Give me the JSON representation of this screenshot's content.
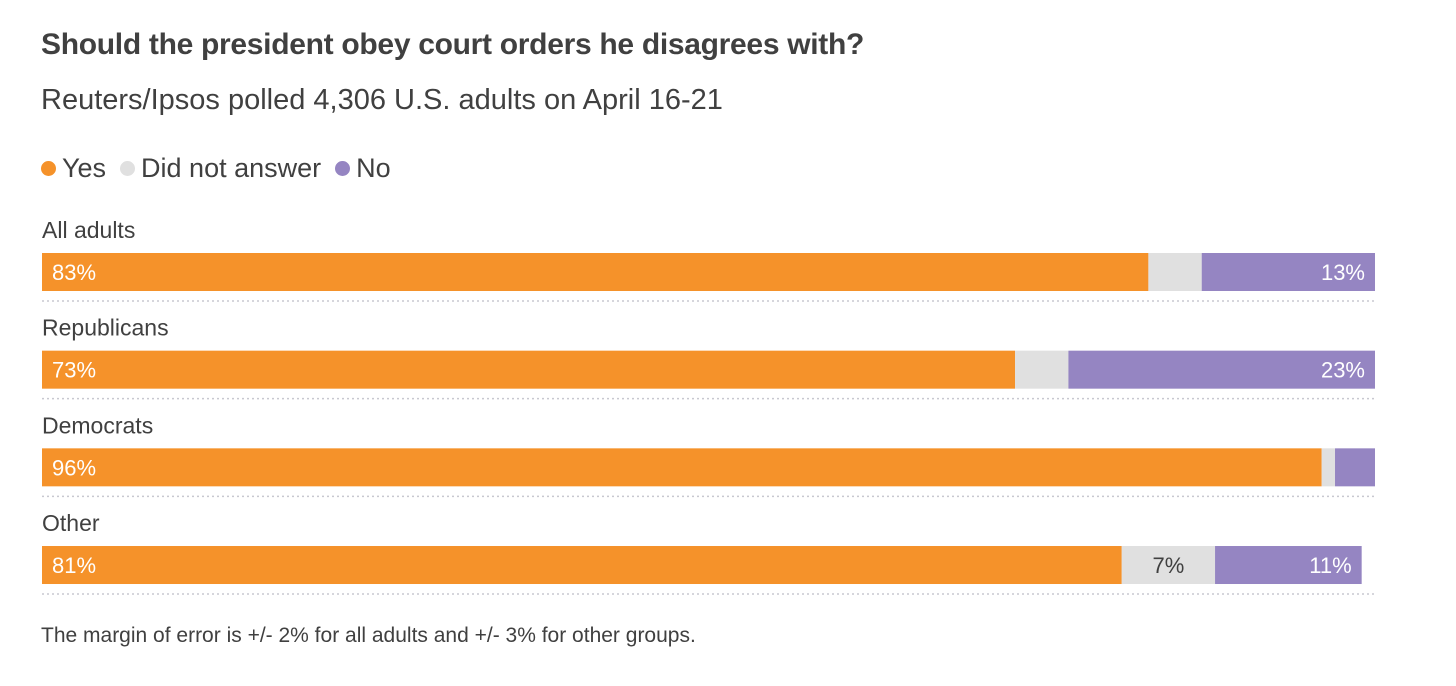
{
  "title": "Should the president obey court orders he disagrees with?",
  "subtitle": "Reuters/Ipsos polled 4,306 U.S. adults on April 16-21",
  "footnote": "The margin of error is +/- 2% for all adults and +/- 3% for other groups.",
  "colors": {
    "yes": "#f5922a",
    "did_not_answer": "#e0e0e0",
    "no": "#9585c2",
    "separator": "#c8c8d0"
  },
  "legend": [
    {
      "label": "Yes",
      "color": "#f5922a"
    },
    {
      "label": "Did not answer",
      "color": "#e0e0e0"
    },
    {
      "label": "No",
      "color": "#9585c2"
    }
  ],
  "chart_data": {
    "type": "bar",
    "orientation": "horizontal",
    "stacked": true,
    "unit": "%",
    "categories": [
      "All adults",
      "Republicans",
      "Democrats",
      "Other"
    ],
    "series": [
      {
        "name": "Yes",
        "values": [
          83,
          73,
          96,
          81
        ],
        "labels": [
          "83%",
          "73%",
          "96%",
          "81%"
        ]
      },
      {
        "name": "Did not answer",
        "values": [
          4,
          4,
          1,
          7
        ],
        "labels": [
          "",
          "",
          "",
          "7%"
        ]
      },
      {
        "name": "No",
        "values": [
          13,
          23,
          3,
          11
        ],
        "labels": [
          "13%",
          "23%",
          "",
          "11%"
        ]
      }
    ],
    "xlim": [
      0,
      100
    ],
    "grid": false,
    "legend_position": "top-left"
  }
}
